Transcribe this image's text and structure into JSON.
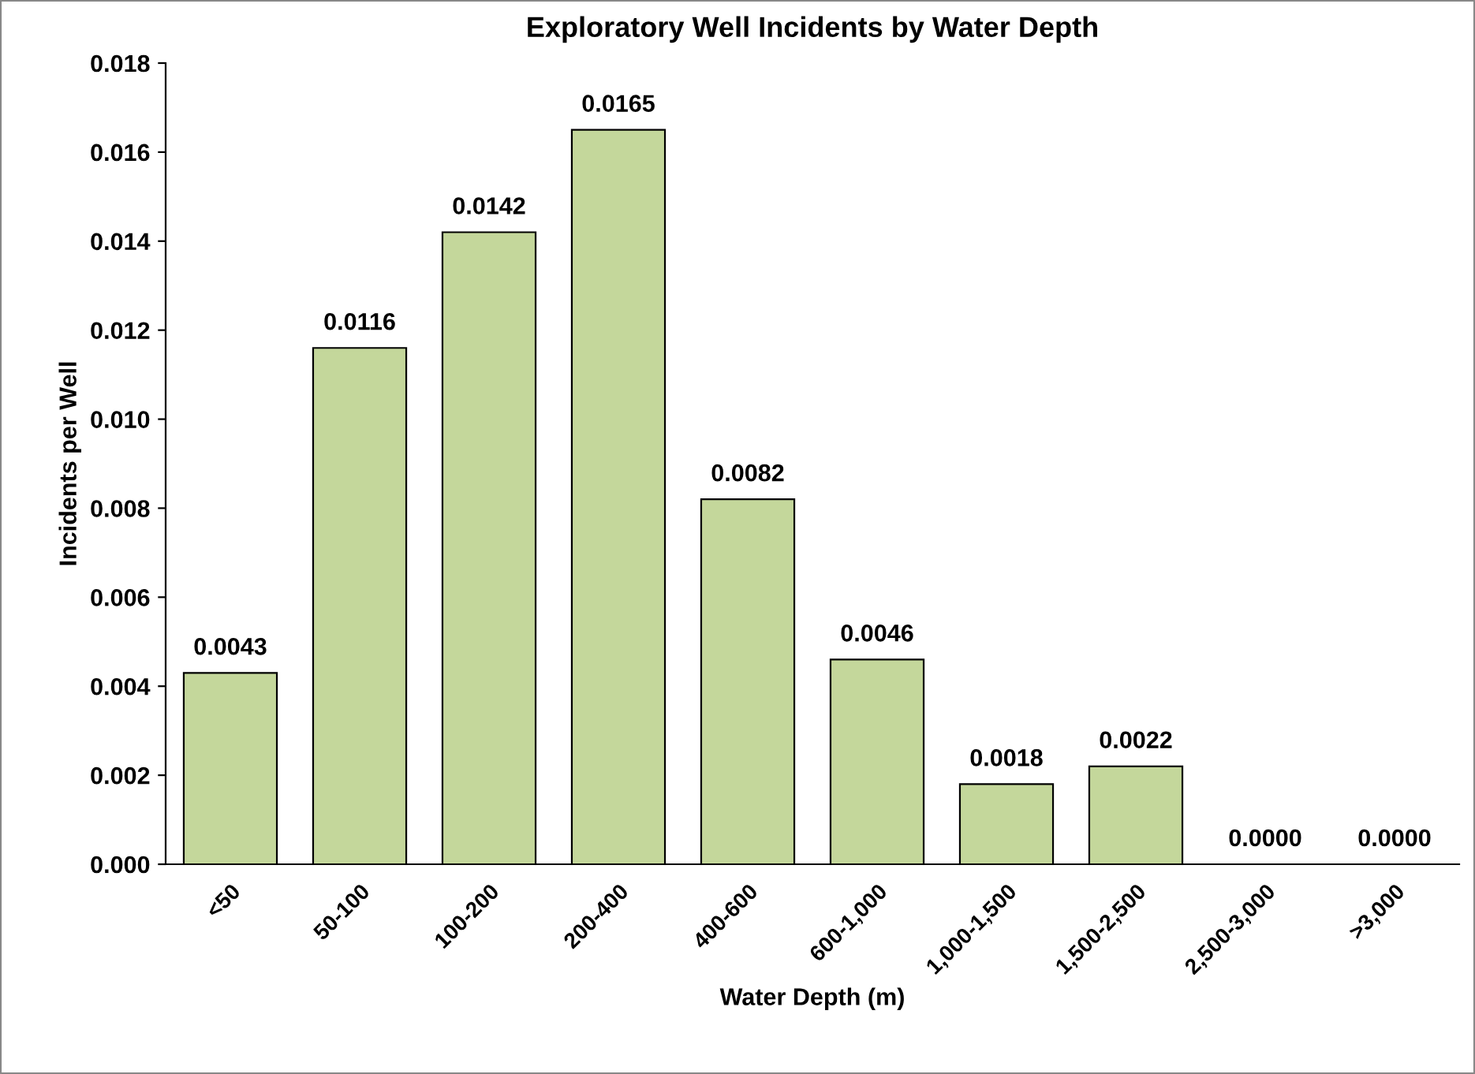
{
  "chart_data": {
    "type": "bar",
    "title": "Exploratory Well Incidents by Water Depth",
    "xlabel": "Water Depth (m)",
    "ylabel": "Incidents per Well",
    "categories": [
      "<50",
      "50-100",
      "100-200",
      "200-400",
      "400-600",
      "600-1,000",
      "1,000-1,500",
      "1,500-2,500",
      "2,500-3,000",
      ">3,000"
    ],
    "values": [
      0.0043,
      0.0116,
      0.0142,
      0.0165,
      0.0082,
      0.0046,
      0.0018,
      0.0022,
      0,
      0
    ],
    "value_labels": [
      "0.0043",
      "0.0116",
      "0.0142",
      "0.0165",
      "0.0082",
      "0.0046",
      "0.0018",
      "0.0022",
      "0.0000",
      "0.0000"
    ],
    "color": "#c4d79b",
    "ylim": [
      0,
      0.018
    ],
    "yticks": [
      {
        "value": 0,
        "label": "0.000"
      },
      {
        "value": 0.002,
        "label": "0.002"
      },
      {
        "value": 0.004,
        "label": "0.004"
      },
      {
        "value": 0.006,
        "label": "0.006"
      },
      {
        "value": 0.008,
        "label": "0.008"
      },
      {
        "value": 0.01,
        "label": "0.010"
      },
      {
        "value": 0.012,
        "label": "0.012"
      },
      {
        "value": 0.014,
        "label": "0.014"
      },
      {
        "value": 0.016,
        "label": "0.016"
      },
      {
        "value": 0.018,
        "label": "0.018"
      }
    ],
    "grid": false,
    "legend": false
  }
}
